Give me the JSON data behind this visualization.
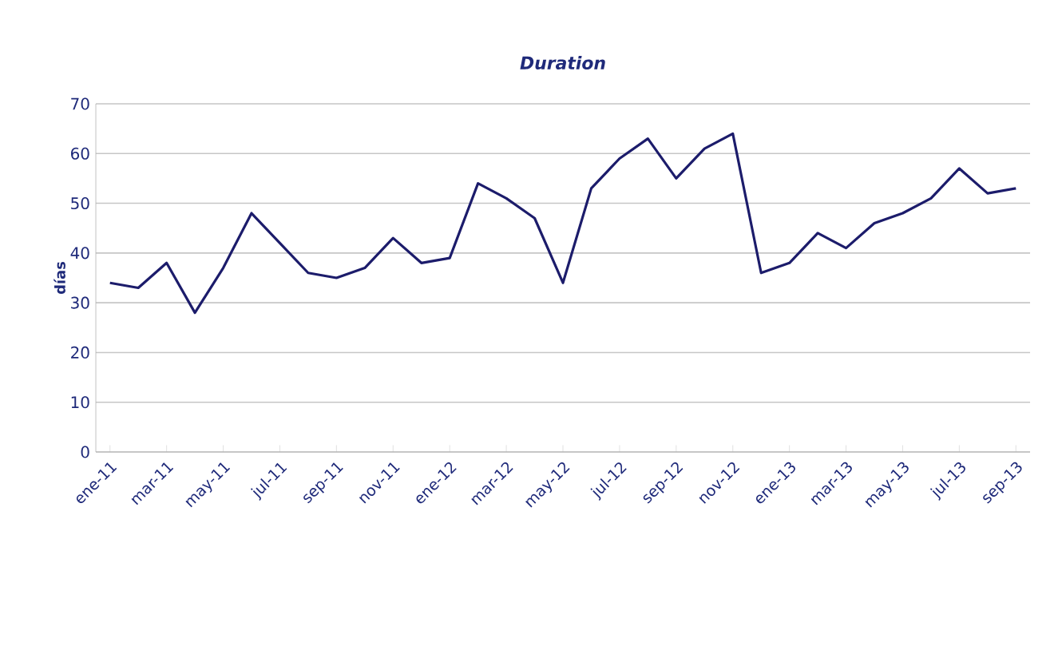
{
  "chart_data": {
    "type": "line",
    "title": "Duration",
    "ylabel": "días",
    "categories": [
      "ene-11",
      null,
      "mar-11",
      null,
      "may-11",
      null,
      "jul-11",
      null,
      "sep-11",
      null,
      "nov-11",
      null,
      "ene-12",
      null,
      "mar-12",
      null,
      "may-12",
      null,
      "jul-12",
      null,
      "sep-12",
      null,
      "nov-12",
      null,
      "ene-13",
      null,
      "mar-13",
      null,
      "may-13",
      null,
      "jul-13",
      null,
      "sep-13"
    ],
    "series": [
      {
        "color": "#1c1c6b",
        "values": [
          34,
          33,
          38,
          28,
          37,
          48,
          42,
          36,
          35,
          37,
          43,
          38,
          39,
          54,
          51,
          47,
          34,
          53,
          59,
          63,
          55,
          61,
          64,
          36,
          38,
          44,
          41,
          46,
          48,
          51,
          57,
          52,
          53
        ]
      }
    ],
    "ylim": [
      0,
      70
    ],
    "yticks": [
      0,
      10,
      20,
      30,
      40,
      50,
      60,
      70
    ],
    "grid": "y",
    "marker": "none",
    "line_style": "solid"
  }
}
